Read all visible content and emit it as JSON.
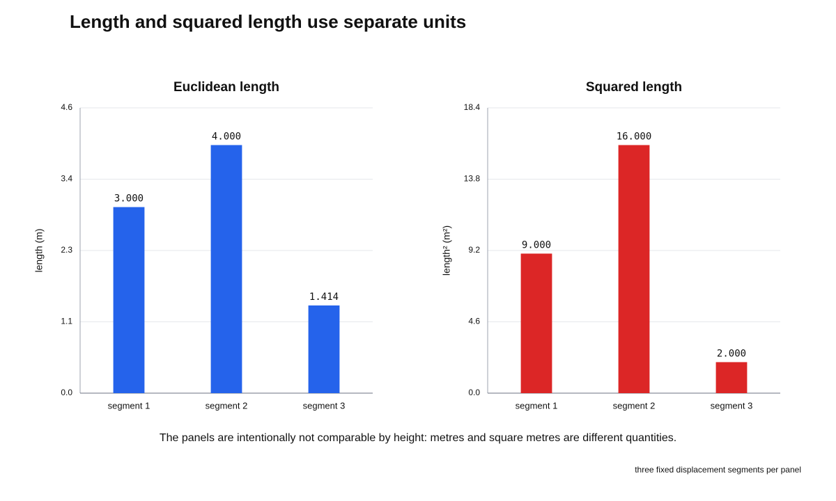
{
  "title": "Length and squared length use separate units",
  "caption": "The panels are intentionally not comparable by height: metres and square metres are different quantities.",
  "footnote": "three fixed displacement segments per panel",
  "chart_data": [
    {
      "type": "bar",
      "title": "Euclidean length",
      "y_label": "length (m)",
      "categories": [
        "segment 1",
        "segment 2",
        "segment 3"
      ],
      "values": [
        3,
        4,
        1.414
      ],
      "value_labels": [
        "3.000",
        "4.000",
        "1.414"
      ],
      "color": "#2563eb",
      "ylim": [
        0,
        4.6
      ],
      "yticks": [
        {
          "value": 0,
          "label": "0.0"
        },
        {
          "value": 1.15,
          "label": "1.1"
        },
        2.3,
        {
          "value": 3.45,
          "label": "3.4"
        },
        4.6
      ],
      "grid": true
    },
    {
      "type": "bar",
      "title": "Squared length",
      "y_label": "length² (m²)",
      "categories": [
        "segment 1",
        "segment 2",
        "segment 3"
      ],
      "values": [
        9,
        16,
        2
      ],
      "value_labels": [
        "9.000",
        "16.000",
        "2.000"
      ],
      "color": "#dc2626",
      "ylim": [
        0,
        18.4
      ],
      "yticks": [
        {
          "value": 0,
          "label": "0.0"
        },
        4.6,
        9.2,
        13.8,
        18.4
      ],
      "grid": true
    }
  ]
}
